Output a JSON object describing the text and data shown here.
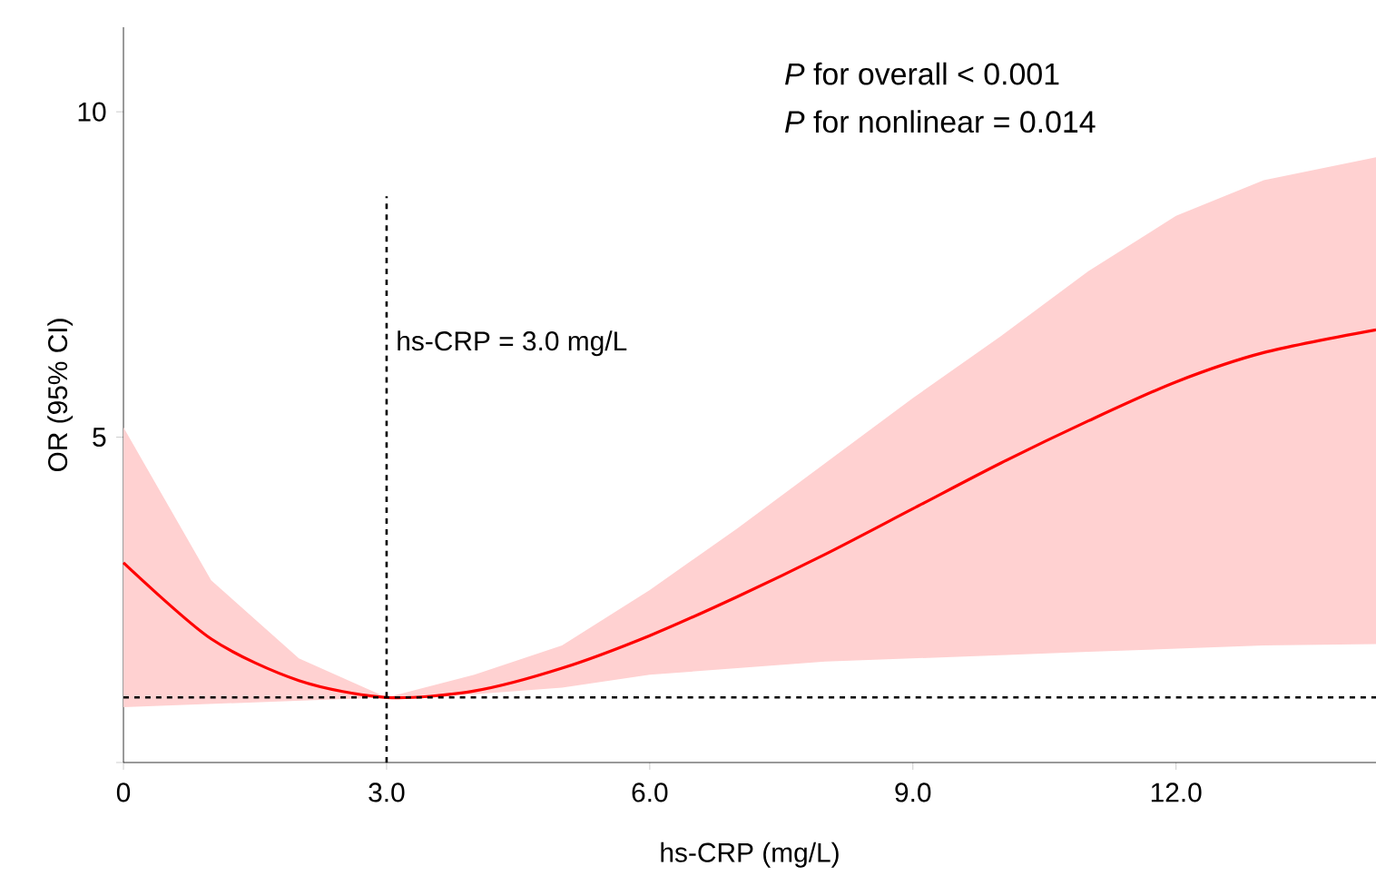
{
  "chart_data": {
    "type": "line",
    "xlabel": "hs-CRP (mg/L)",
    "ylabel": "OR (95% CI)",
    "x": [
      0,
      1,
      2,
      3,
      4,
      5,
      6,
      7,
      8,
      9,
      10,
      11,
      12,
      13,
      14.28
    ],
    "series": [
      {
        "color": "#ff0000",
        "values": [
          3.07,
          1.9,
          1.26,
          1.0,
          1.1,
          1.45,
          1.95,
          2.55,
          3.2,
          3.9,
          4.6,
          5.25,
          5.85,
          6.3,
          6.65
        ],
        "lower": [
          0.85,
          0.9,
          0.95,
          1.0,
          1.05,
          1.15,
          1.35,
          1.45,
          1.55,
          1.6,
          1.65,
          1.7,
          1.75,
          1.8,
          1.82
        ],
        "upper": [
          5.15,
          2.8,
          1.6,
          1.0,
          1.35,
          1.8,
          2.65,
          3.6,
          4.6,
          5.6,
          6.55,
          7.55,
          8.4,
          8.95,
          9.3
        ]
      }
    ],
    "xlim": [
      0,
      14.28
    ],
    "ylim": [
      0,
      11.3
    ],
    "xticks": [
      0,
      {
        "value": 3,
        "label": "3.0"
      },
      {
        "value": 6,
        "label": "6.0"
      },
      {
        "value": 9,
        "label": "9.0"
      },
      {
        "value": 12,
        "label": "12.0"
      }
    ],
    "yticks": [
      {
        "value": 0,
        "label": null
      },
      5,
      10
    ],
    "ref_lines": [
      {
        "axis": "x",
        "value": 3,
        "label": "hs-CRP = 3.0 mg/L",
        "color": "#000000",
        "line_style": "dashed"
      },
      {
        "axis": "y",
        "value": 1,
        "label": null,
        "color": "#000000",
        "line_style": "dashed"
      }
    ],
    "annotations": [
      "*P* for overall < 0.001",
      "*P* for nonlinear = 0.014"
    ],
    "line_style": "solid",
    "marker": "none"
  }
}
